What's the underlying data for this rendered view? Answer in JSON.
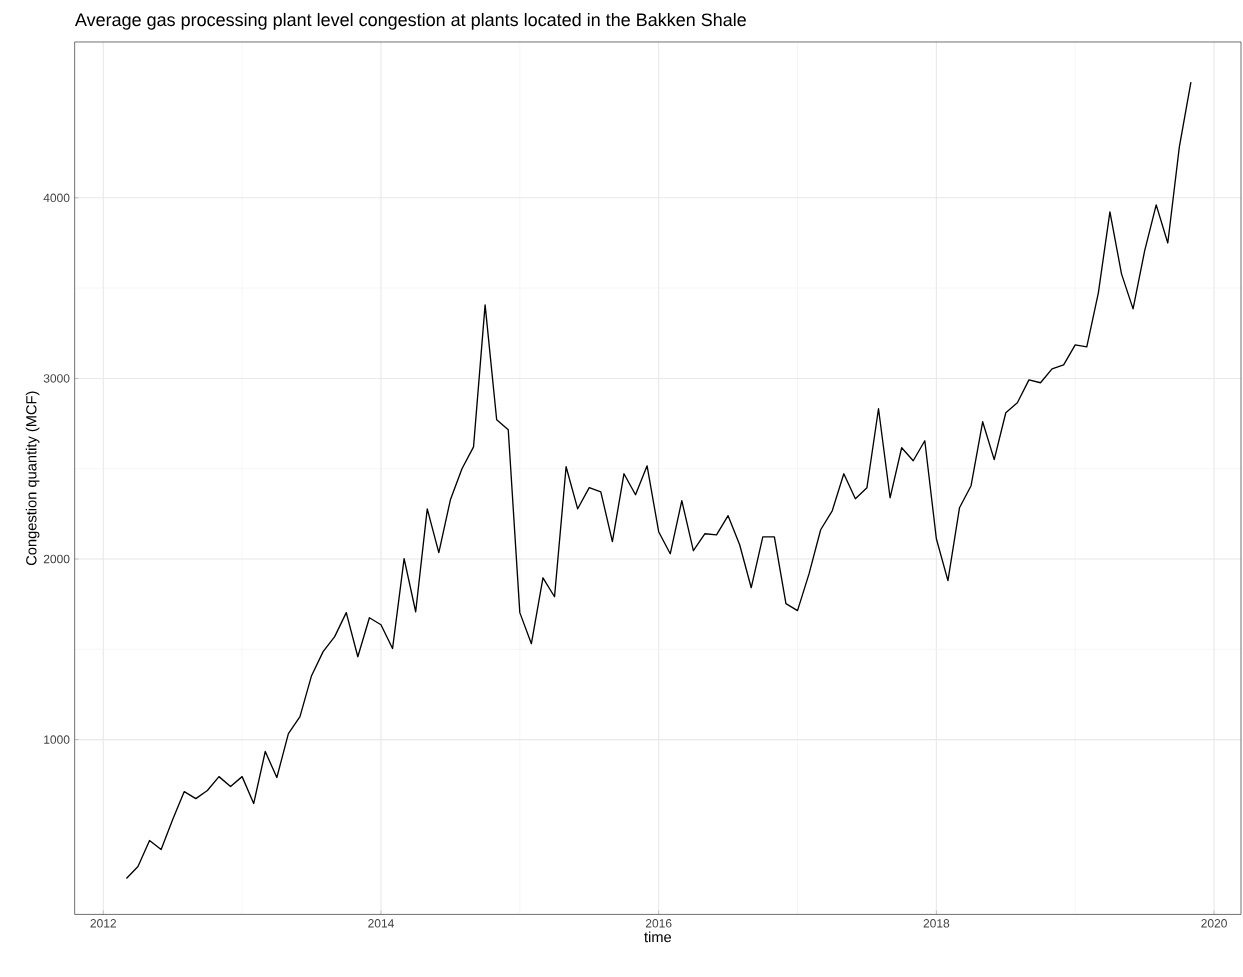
{
  "chart_data": {
    "type": "line",
    "title": "Average gas processing plant level congestion at plants located in the Bakken Shale",
    "xlabel": "time",
    "ylabel": "Congestion quantity (MCF)",
    "x": [
      "2012-03",
      "2012-04",
      "2012-05",
      "2012-06",
      "2012-07",
      "2012-08",
      "2012-09",
      "2012-10",
      "2012-11",
      "2012-12",
      "2013-01",
      "2013-02",
      "2013-03",
      "2013-04",
      "2013-05",
      "2013-06",
      "2013-07",
      "2013-08",
      "2013-09",
      "2013-10",
      "2013-11",
      "2013-12",
      "2014-01",
      "2014-02",
      "2014-03",
      "2014-04",
      "2014-05",
      "2014-06",
      "2014-07",
      "2014-08",
      "2014-09",
      "2014-10",
      "2014-11",
      "2014-12",
      "2015-01",
      "2015-02",
      "2015-03",
      "2015-04",
      "2015-05",
      "2015-06",
      "2015-07",
      "2015-08",
      "2015-09",
      "2015-10",
      "2015-11",
      "2015-12",
      "2016-01",
      "2016-02",
      "2016-03",
      "2016-04",
      "2016-05",
      "2016-06",
      "2016-07",
      "2016-08",
      "2016-09",
      "2016-10",
      "2016-11",
      "2016-12",
      "2017-01",
      "2017-02",
      "2017-03",
      "2017-04",
      "2017-05",
      "2017-06",
      "2017-07",
      "2017-08",
      "2017-09",
      "2017-10",
      "2017-11",
      "2017-12",
      "2018-01",
      "2018-02",
      "2018-03",
      "2018-04",
      "2018-05",
      "2018-06",
      "2018-07",
      "2018-08",
      "2018-09",
      "2018-10",
      "2018-11",
      "2018-12",
      "2019-01",
      "2019-02",
      "2019-03",
      "2019-04",
      "2019-05",
      "2019-06",
      "2019-07",
      "2019-08",
      "2019-09",
      "2019-10",
      "2019-11"
    ],
    "series": [
      {
        "color": "#000000",
        "values": [
          231,
          297,
          441,
          391,
          557,
          712,
          673,
          718,
          795,
          740,
          795,
          646,
          934,
          790,
          1033,
          1127,
          1354,
          1487,
          1570,
          1703,
          1459,
          1675,
          1636,
          1504,
          2002,
          1708,
          2278,
          2035,
          2328,
          2500,
          2621,
          3407,
          2771,
          2716,
          1703,
          1531,
          1896,
          1791,
          2511,
          2278,
          2395,
          2372,
          2096,
          2472,
          2356,
          2516,
          2151,
          2029,
          2323,
          2046,
          2140,
          2134,
          2240,
          2079,
          1841,
          2123,
          2123,
          1753,
          1714,
          1919,
          2162,
          2267,
          2472,
          2334,
          2395,
          2832,
          2339,
          2616,
          2544,
          2655,
          2112,
          1880,
          2284,
          2406,
          2760,
          2550,
          2810,
          2865,
          2992,
          2976,
          3053,
          3075,
          3186,
          3175,
          3474,
          3922,
          3579,
          3385,
          3706,
          3961,
          3750,
          4282,
          4641
        ]
      }
    ],
    "xlim": [
      "2011-10-17",
      "2020-03-11"
    ],
    "ylim": [
      32,
      4863
    ],
    "xticks": [
      "2012",
      "2014",
      "2016",
      "2018",
      "2020"
    ],
    "yticks": [
      1000,
      2000,
      3000,
      4000
    ],
    "grid": true,
    "marker": "none",
    "line_style": "solid"
  }
}
